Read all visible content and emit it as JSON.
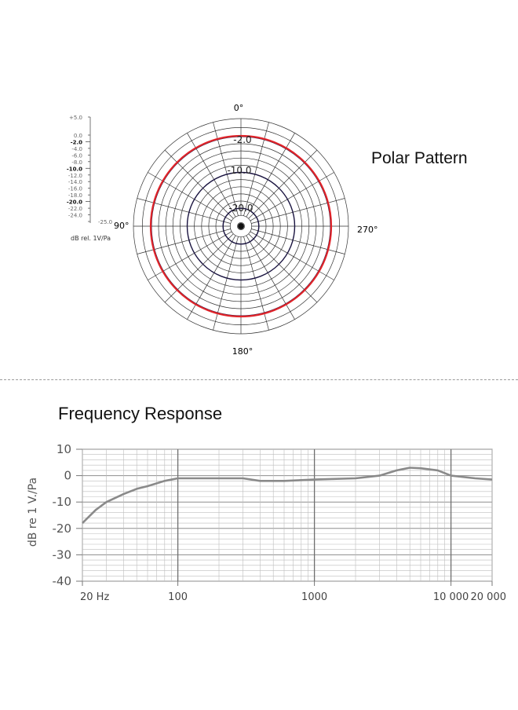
{
  "polar": {
    "title": "Polar Pattern",
    "angle_labels": {
      "top": "0°",
      "left": "90°",
      "right": "270°",
      "bottom": "180°"
    },
    "ring_labels": [
      "-2.0",
      "-10.0",
      "-20.0"
    ],
    "scale_labels": [
      "+5.0",
      "0.0",
      "-2.0",
      "-4.0",
      "-6.0",
      "-8.0",
      "-10.0",
      "-12.0",
      "-14.0",
      "-16.0",
      "-18.0",
      "-20.0",
      "-22.0",
      "-24.0",
      "-25.0"
    ],
    "scale_unit": "dB rel. 1V/Pa",
    "pattern": "omnidirectional",
    "response_db": -2.0,
    "colors": {
      "response": "#e0242a",
      "grid": "#333333",
      "dark_ring": "#1a1440"
    }
  },
  "chart_data": {
    "type": "line",
    "title": "Frequency Response",
    "xlabel": "",
    "ylabel": "dB re 1 V./Pa",
    "x_scale": "log",
    "xlim": [
      20,
      20000
    ],
    "ylim": [
      -40,
      10
    ],
    "x_tick_labels": [
      {
        "value": 20,
        "label": "20 Hz"
      },
      {
        "value": 100,
        "label": "100"
      },
      {
        "value": 1000,
        "label": "1000"
      },
      {
        "value": 10000,
        "label": "10 000"
      },
      {
        "value": 20000,
        "label": "20 000"
      }
    ],
    "y_tick_labels": [
      {
        "value": 10,
        "label": "10"
      },
      {
        "value": 0,
        "label": "0"
      },
      {
        "value": -10,
        "label": "-10"
      },
      {
        "value": -20,
        "label": "-20"
      },
      {
        "value": -30,
        "label": "-30"
      },
      {
        "value": -40,
        "label": "-40"
      }
    ],
    "grid": true,
    "series": [
      {
        "x": [
          20,
          25,
          30,
          40,
          50,
          60,
          80,
          100,
          150,
          200,
          300,
          400,
          600,
          1000,
          2000,
          3000,
          4000,
          5000,
          6000,
          8000,
          10000,
          15000,
          20000
        ],
        "y": [
          -18,
          -13,
          -10,
          -7,
          -5,
          -4,
          -2,
          -1,
          -1,
          -1,
          -1,
          -2,
          -2,
          -1.5,
          -1,
          0,
          2,
          3,
          2.8,
          2,
          0,
          -1,
          -1.5
        ]
      }
    ],
    "colors": {
      "line": "#8a8a8a",
      "grid": "#bdbdbd"
    }
  }
}
